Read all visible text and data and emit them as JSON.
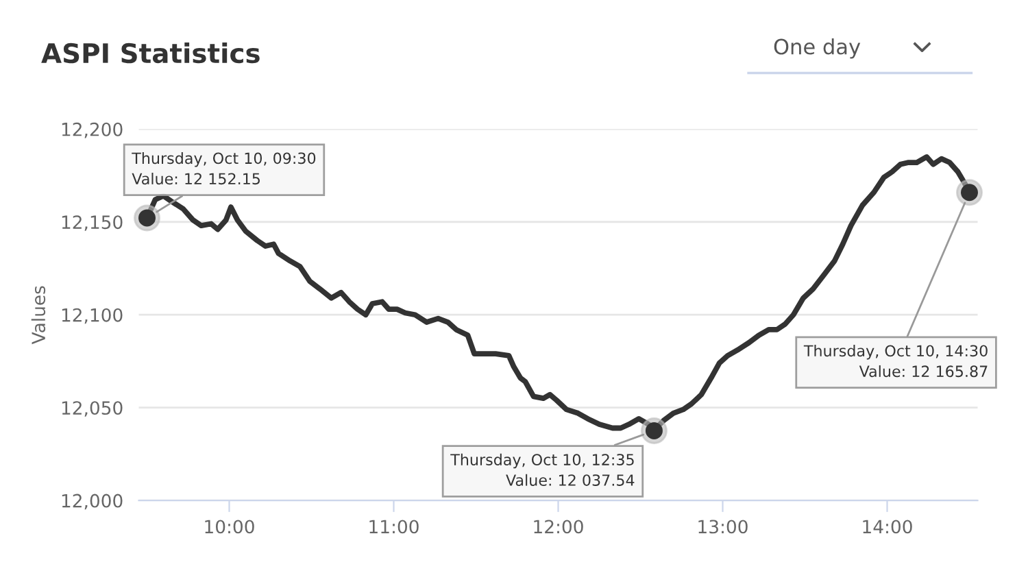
{
  "chart_data": {
    "type": "line",
    "title": "ASPI Statistics",
    "ylabel": "Values",
    "x": [
      9.5,
      9.55,
      9.6,
      9.65,
      9.72,
      9.78,
      9.83,
      9.89,
      9.93,
      9.98,
      10.01,
      10.05,
      10.1,
      10.17,
      10.22,
      10.27,
      10.3,
      10.37,
      10.43,
      10.49,
      10.55,
      10.62,
      10.68,
      10.73,
      10.78,
      10.83,
      10.87,
      10.93,
      10.97,
      11.02,
      11.07,
      11.13,
      11.2,
      11.27,
      11.33,
      11.38,
      11.45,
      11.49,
      11.55,
      11.62,
      11.7,
      11.73,
      11.77,
      11.8,
      11.85,
      11.91,
      11.95,
      11.99,
      12.05,
      12.12,
      12.18,
      12.25,
      12.33,
      12.38,
      12.43,
      12.49,
      12.55,
      12.583,
      12.64,
      12.7,
      12.76,
      12.81,
      12.87,
      12.93,
      12.98,
      13.03,
      13.09,
      13.16,
      13.22,
      13.28,
      13.33,
      13.38,
      13.43,
      13.49,
      13.55,
      13.62,
      13.68,
      13.73,
      13.78,
      13.85,
      13.92,
      13.98,
      14.03,
      14.08,
      14.13,
      14.18,
      14.24,
      14.28,
      14.33,
      14.38,
      14.43,
      14.47,
      14.5
    ],
    "series": [
      {
        "color": "#333333",
        "values": [
          12152,
          12162,
          12164,
          12161,
          12157,
          12151,
          12148,
          12149,
          12146,
          12151,
          12158,
          12151,
          12145,
          12140,
          12137,
          12138,
          12133,
          12129,
          12126,
          12118,
          12114,
          12109,
          12112,
          12107,
          12103,
          12100,
          12106,
          12107,
          12103,
          12103,
          12101,
          12100,
          12096,
          12098,
          12096,
          12092,
          12089,
          12079,
          12079,
          12079,
          12078,
          12072,
          12066,
          12064,
          12056,
          12055,
          12057,
          12054,
          12049,
          12047,
          12044,
          12041,
          12039,
          12039,
          12041,
          12044,
          12041,
          12038,
          12043,
          12047,
          12049,
          12052,
          12057,
          12066,
          12074,
          12078,
          12081,
          12085,
          12089,
          12092,
          12092,
          12095,
          12100,
          12109,
          12114,
          12122,
          12129,
          12138,
          12148,
          12159,
          12166,
          12174,
          12177,
          12181,
          12182,
          12182,
          12185,
          12181,
          12184,
          12182,
          12177,
          12171,
          12166
        ]
      }
    ],
    "xlim": [
      9.45,
      14.55
    ],
    "xticks": [
      {
        "value": 10,
        "label": "10:00"
      },
      {
        "value": 11,
        "label": "11:00"
      },
      {
        "value": 12,
        "label": "12:00"
      },
      {
        "value": 13,
        "label": "13:00"
      },
      {
        "value": 14,
        "label": "14:00"
      }
    ],
    "ylim": [
      12000,
      12200
    ],
    "yticks": [
      {
        "value": 12000,
        "label": "12,000"
      },
      {
        "value": 12050,
        "label": "12,050"
      },
      {
        "value": 12100,
        "label": "12,100"
      },
      {
        "value": 12150,
        "label": "12,150"
      },
      {
        "value": 12200,
        "label": "12,200"
      }
    ],
    "grid": "y",
    "legend": false,
    "marker": "none",
    "line_style": "solid",
    "annotations": [
      "One day",
      {
        "text": "Thursday, Oct 10, 09:30\nValue: 12 152.15",
        "x": 9.5,
        "y": 12152.15
      },
      {
        "text": "Thursday, Oct 10, 12:35\nValue: 12 037.54",
        "x": 12.583,
        "y": 12037.54
      },
      {
        "text": "Thursday, Oct 10, 14:30\nValue: 12 165.87",
        "x": 14.5,
        "y": 12165.87
      }
    ]
  }
}
